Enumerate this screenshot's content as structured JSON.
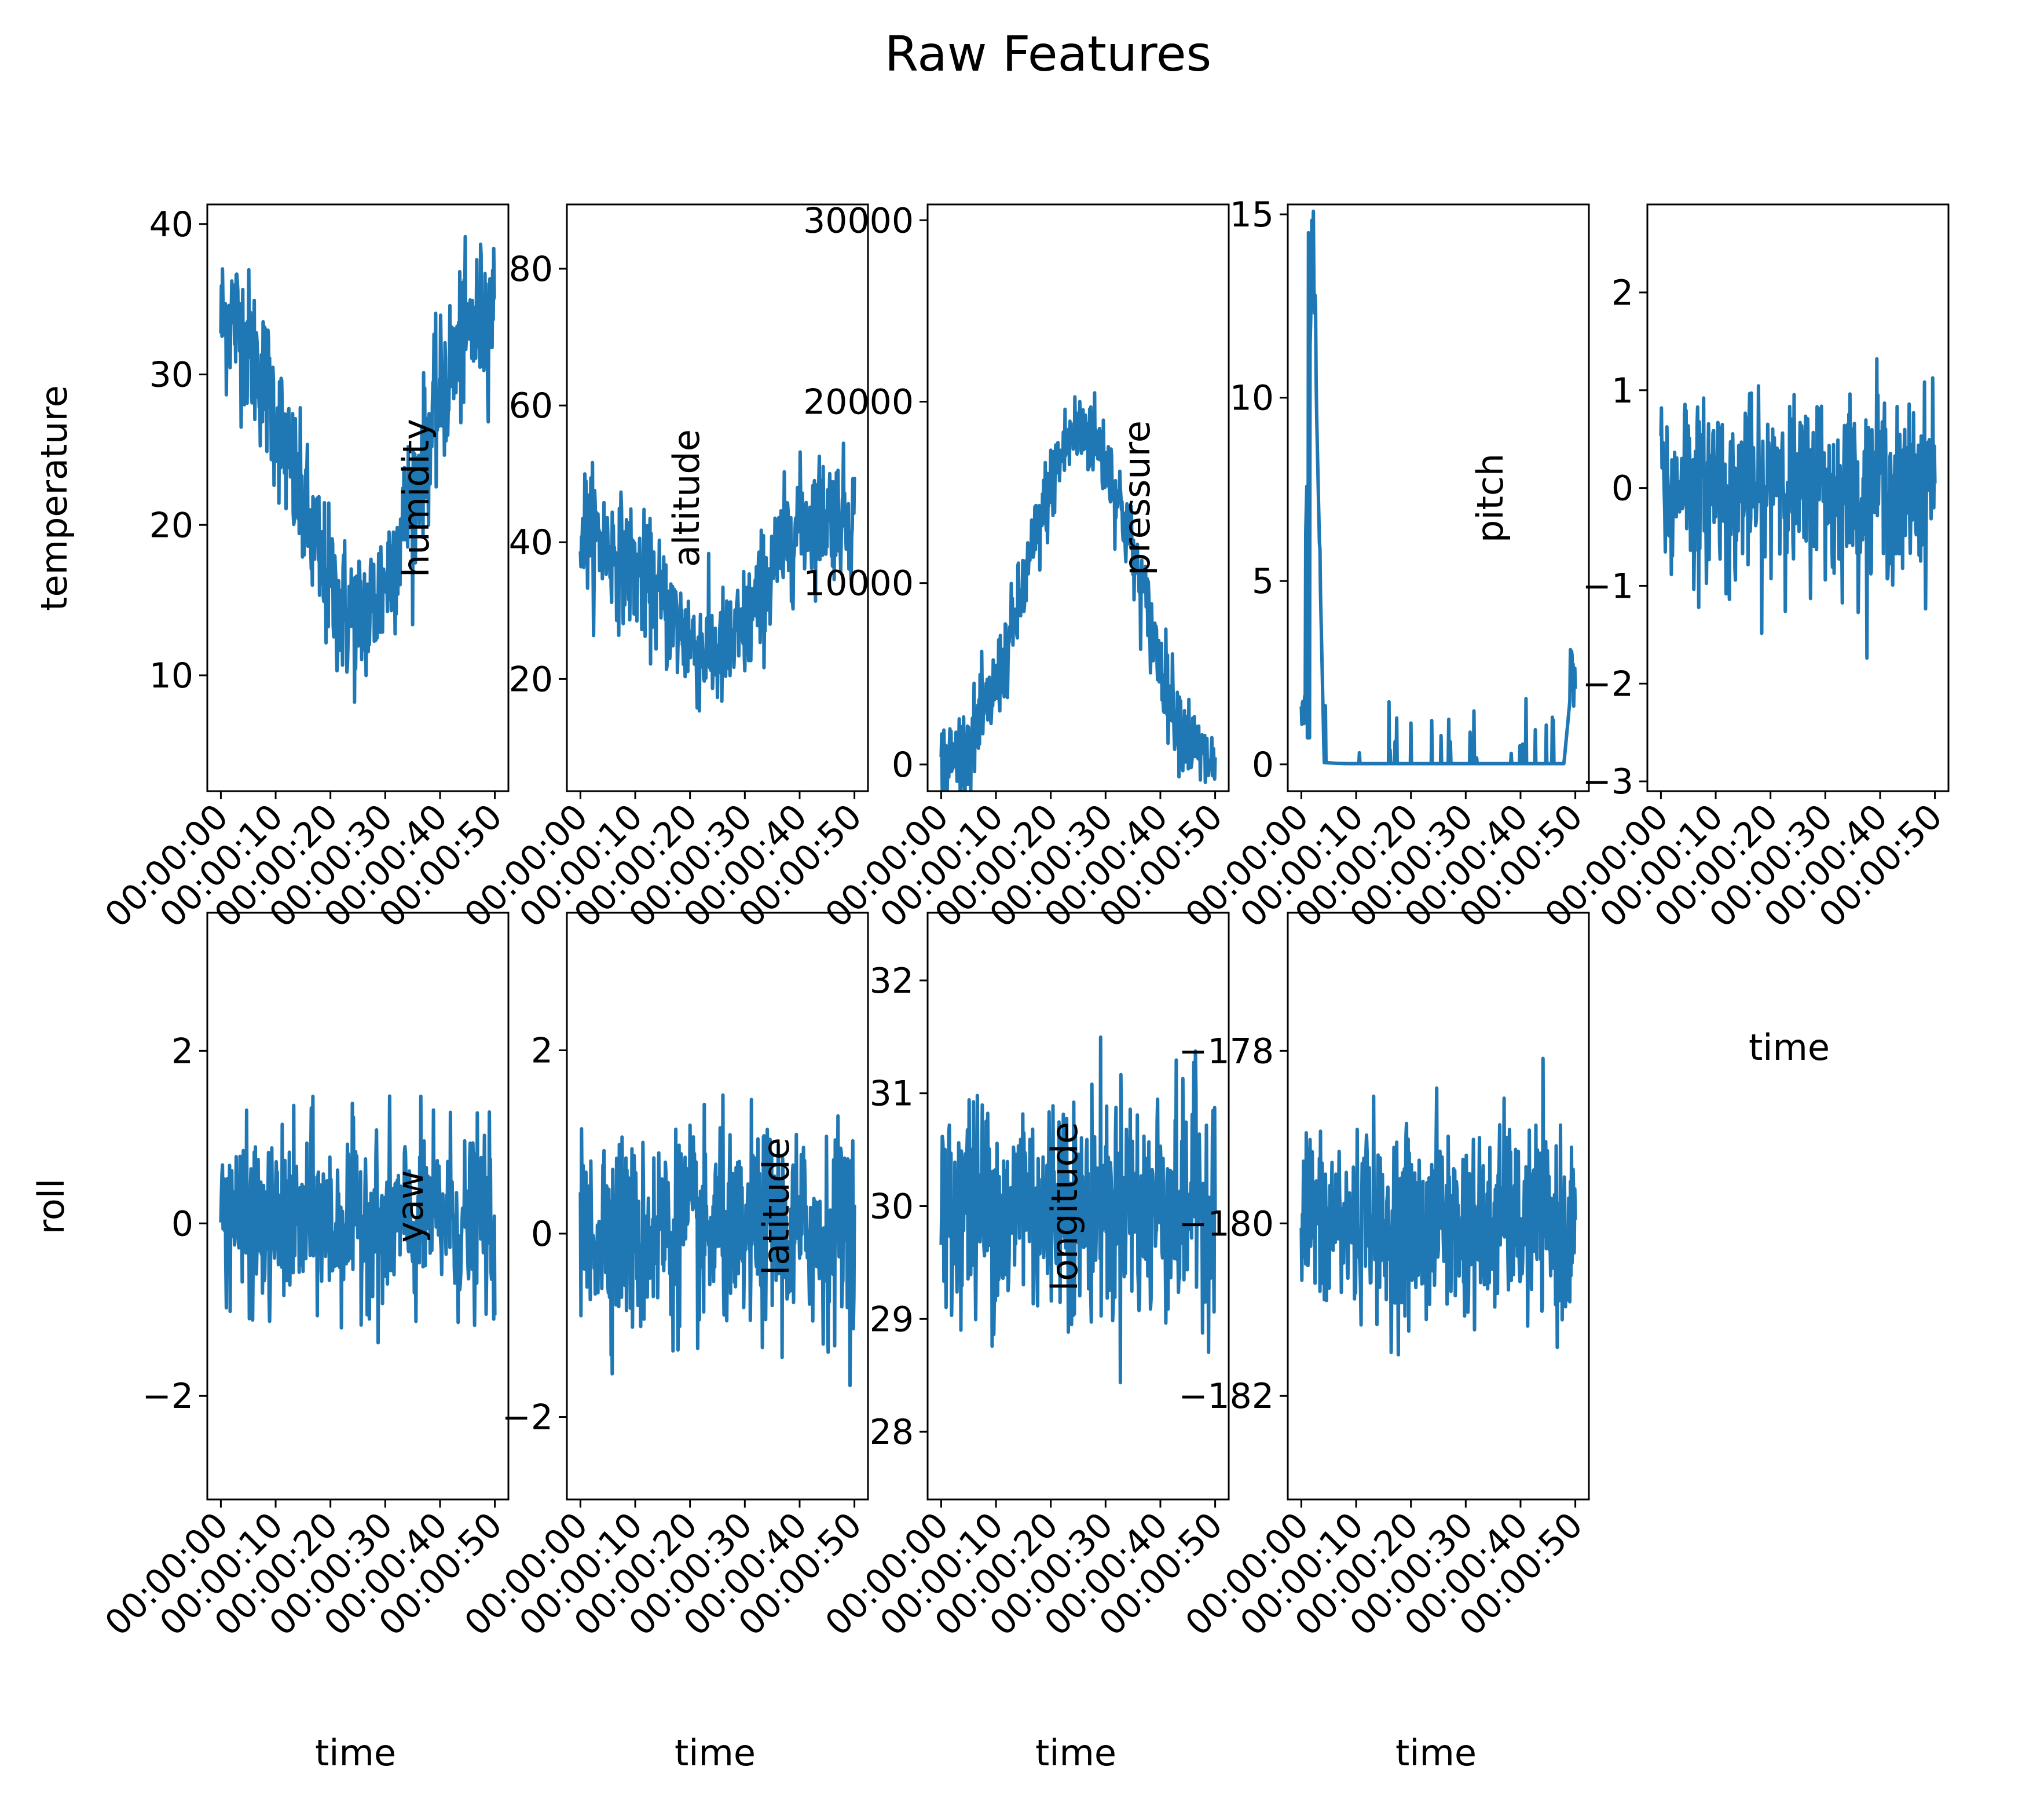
{
  "figure": {
    "suptitle": "Raw Features",
    "line_color": "#1f77b4"
  },
  "chart_data": [
    {
      "type": "line",
      "ylabel": "temperature",
      "xlabel": "",
      "xticks": [
        "00:00:00",
        "00:00:10",
        "00:00:20",
        "00:00:30",
        "00:00:40",
        "00:00:50"
      ],
      "xlim": [
        0,
        50
      ],
      "yticks": [
        "10",
        "20",
        "30",
        "40"
      ],
      "yticks_v": [
        10,
        20,
        30,
        40
      ],
      "ylim": [
        2.3,
        41.3
      ],
      "series": [
        {
          "values": [
            33.5,
            34.0,
            32.7,
            31.0,
            29.2,
            26.8,
            24.0,
            21.5,
            19.1,
            16.8,
            15.2,
            14.1,
            13.8,
            14.3,
            15.6,
            17.5,
            19.9,
            22.5,
            25.2,
            27.8,
            30.0,
            31.8,
            33.0,
            33.8,
            34.3
          ]
        }
      ]
    },
    {
      "type": "line",
      "ylabel": "humidity",
      "xlabel": "",
      "xticks": [
        "00:00:00",
        "00:00:10",
        "00:00:20",
        "00:00:30",
        "00:00:40",
        "00:00:50"
      ],
      "xlim": [
        0,
        50
      ],
      "yticks": [
        "20",
        "40",
        "60",
        "80"
      ],
      "yticks_v": [
        20,
        40,
        60,
        80
      ],
      "ylim": [
        3.6,
        89.4
      ],
      "series": [
        {
          "values": [
            43.0,
            41.5,
            40.0,
            38.5,
            37.0,
            35.5,
            33.8,
            31.5,
            29.0,
            26.8,
            25.0,
            24.0,
            23.8,
            24.5,
            26.5,
            29.5,
            33.0,
            36.8,
            40.0,
            42.3,
            43.5,
            44.2,
            44.5,
            44.0,
            43.5
          ]
        }
      ]
    },
    {
      "type": "line",
      "ylabel": "altitude",
      "xlabel": "",
      "xticks": [
        "00:00:00",
        "00:00:10",
        "00:00:20",
        "00:00:30",
        "00:00:40",
        "00:00:50"
      ],
      "xlim": [
        0,
        50
      ],
      "yticks": [
        "0",
        "10000",
        "20000",
        "30000"
      ],
      "yticks_v": [
        0,
        10000,
        20000,
        30000
      ],
      "ylim": [
        -1470,
        30870
      ],
      "series": [
        {
          "values": [
            0,
            300,
            800,
            1700,
            3000,
            4700,
            6800,
            9200,
            11700,
            14100,
            16200,
            17700,
            18400,
            18300,
            17400,
            15800,
            13600,
            11100,
            8500,
            6000,
            3900,
            2200,
            1000,
            300,
            0
          ]
        }
      ]
    },
    {
      "type": "line",
      "ylabel": "pressure",
      "xlabel": "",
      "xticks": [
        "00:00:00",
        "00:00:10",
        "00:00:20",
        "00:00:30",
        "00:00:40",
        "00:00:50"
      ],
      "xlim": [
        0,
        50
      ],
      "yticks": [
        "0",
        "5",
        "10",
        "15"
      ],
      "yticks_v": [
        0,
        5,
        10,
        15
      ],
      "ylim": [
        -0.73,
        15.27
      ],
      "series": [
        {
          "values": [
            1.2,
            14.5,
            0.05,
            0.03,
            0.02,
            0.02,
            0.02,
            0.02,
            0.02,
            0.02,
            0.02,
            0.02,
            0.02,
            0.02,
            0.02,
            0.02,
            0.02,
            0.02,
            0.02,
            0.02,
            0.02,
            0.02,
            0.02,
            0.02,
            3.3
          ]
        }
      ]
    },
    {
      "type": "line",
      "ylabel": "pitch",
      "xlabel": "time",
      "xticks": [
        "00:00:00",
        "00:00:10",
        "00:00:20",
        "00:00:30",
        "00:00:40",
        "00:00:50"
      ],
      "xlim": [
        0,
        50
      ],
      "yticks": [
        "−3",
        "−2",
        "−1",
        "0",
        "1",
        "2"
      ],
      "yticks_v": [
        -3,
        -2,
        -1,
        0,
        1,
        2
      ],
      "ylim": [
        -3.1,
        2.9
      ],
      "series": [
        {
          "values": [
            0.1,
            -0.2,
            0.3,
            -0.1,
            0.0,
            0.2,
            -0.3,
            0.1,
            0.0,
            -0.2,
            0.3,
            0.1,
            -0.1,
            0.0,
            0.2,
            -0.2,
            0.1,
            0.0,
            -0.1,
            0.2,
            0.0,
            -0.2,
            0.1,
            0.0,
            0.3
          ]
        }
      ]
    },
    {
      "type": "line",
      "ylabel": "roll",
      "xlabel": "time",
      "xticks": [
        "00:00:00",
        "00:00:10",
        "00:00:20",
        "00:00:30",
        "00:00:40",
        "00:00:50"
      ],
      "xlim": [
        0,
        50
      ],
      "yticks": [
        "−2",
        "0",
        "2"
      ],
      "yticks_v": [
        -2,
        0,
        2
      ],
      "ylim": [
        -3.2,
        3.6
      ],
      "series": [
        {
          "values": [
            0.0,
            0.2,
            -0.1,
            0.1,
            -0.2,
            0.0,
            0.1,
            -0.1,
            0.2,
            0.0,
            -0.1,
            0.1,
            0.0,
            0.2,
            -0.2,
            0.1,
            0.0,
            -0.1,
            0.1,
            0.0,
            0.2,
            -0.1,
            0.0,
            0.1,
            -0.1
          ]
        }
      ]
    },
    {
      "type": "line",
      "ylabel": "yaw",
      "xlabel": "time",
      "xticks": [
        "00:00:00",
        "00:00:10",
        "00:00:20",
        "00:00:30",
        "00:00:40",
        "00:00:50"
      ],
      "xlim": [
        0,
        50
      ],
      "yticks": [
        "−2",
        "0",
        "2"
      ],
      "yticks_v": [
        -2,
        0,
        2
      ],
      "ylim": [
        -2.9,
        3.5
      ],
      "series": [
        {
          "values": [
            0.0,
            -0.1,
            0.2,
            0.0,
            0.1,
            -0.2,
            0.0,
            0.1,
            -0.1,
            0.2,
            0.0,
            -0.1,
            0.1,
            0.0,
            -0.2,
            0.1,
            0.0,
            0.2,
            -0.1,
            0.0,
            0.1,
            -0.1,
            0.0,
            0.2,
            0.0
          ]
        }
      ]
    },
    {
      "type": "line",
      "ylabel": "latitude",
      "xlabel": "time",
      "xticks": [
        "00:00:00",
        "00:00:10",
        "00:00:20",
        "00:00:30",
        "00:00:40",
        "00:00:50"
      ],
      "xlim": [
        0,
        50
      ],
      "yticks": [
        "28",
        "29",
        "30",
        "31",
        "32"
      ],
      "yticks_v": [
        28,
        29,
        30,
        31,
        32
      ],
      "ylim": [
        27.4,
        32.6
      ],
      "series": [
        {
          "values": [
            30.0,
            29.8,
            30.2,
            29.9,
            30.1,
            30.0,
            29.7,
            30.3,
            30.0,
            29.9,
            30.1,
            30.2,
            29.8,
            30.0,
            30.1,
            29.9,
            30.2,
            30.0,
            29.8,
            30.1,
            30.0,
            29.9,
            30.2,
            30.0,
            30.1
          ]
        }
      ]
    },
    {
      "type": "line",
      "ylabel": "longitude",
      "xlabel": "time",
      "xticks": [
        "00:00:00",
        "00:00:10",
        "00:00:20",
        "00:00:30",
        "00:00:40",
        "00:00:50"
      ],
      "xlim": [
        0,
        50
      ],
      "yticks": [
        "−182",
        "−180",
        "−178"
      ],
      "yticks_v": [
        -182,
        -180,
        -178
      ],
      "ylim": [
        -183.2,
        -176.4
      ],
      "series": [
        {
          "values": [
            -180.0,
            -179.8,
            -180.2,
            -179.9,
            -180.1,
            -180.0,
            -179.7,
            -180.3,
            -180.0,
            -179.9,
            -180.1,
            -180.2,
            -179.8,
            -180.0,
            -180.1,
            -179.9,
            -180.2,
            -180.0,
            -179.8,
            -180.1,
            -180.0,
            -179.9,
            -180.2,
            -180.0,
            -180.1
          ]
        }
      ]
    }
  ]
}
